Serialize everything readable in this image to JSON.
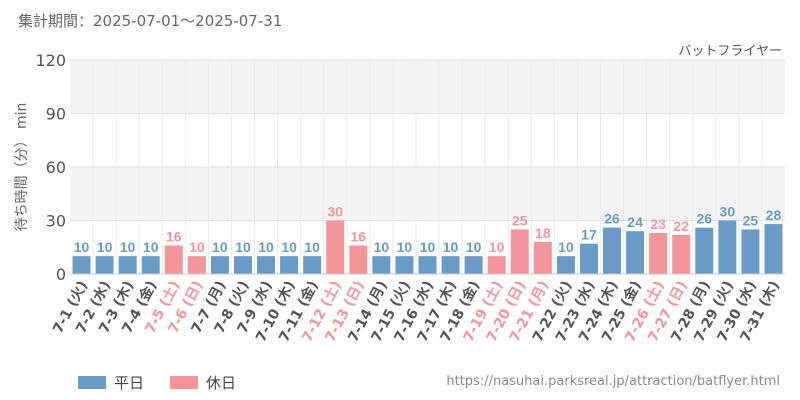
{
  "header": {
    "period": "集計期間：2025-07-01～2025-07-31",
    "attraction": "バットフライヤー"
  },
  "footer": {
    "source_url": "https://nasuhai.parksreal.jp/attraction/batflyer.html"
  },
  "colors": {
    "weekday": "#6a9bc6",
    "holiday": "#f4959a"
  },
  "chart_data": {
    "type": "bar",
    "ylabel": "待ち時間（分） min",
    "ylim": [
      0,
      120
    ],
    "yticks": [
      "0",
      "30",
      "60",
      "90",
      "120"
    ],
    "grid": true,
    "legend": [
      {
        "name": "平日",
        "kind": "weekday"
      },
      {
        "name": "休日",
        "kind": "holiday"
      }
    ],
    "categories": [
      "7-1 (火)",
      "7-2 (水)",
      "7-3 (木)",
      "7-4 (金)",
      "7-5 (土)",
      "7-6 (日)",
      "7-7 (月)",
      "7-8 (火)",
      "7-9 (水)",
      "7-10 (木)",
      "7-11 (金)",
      "7-12 (土)",
      "7-13 (日)",
      "7-14 (月)",
      "7-15 (火)",
      "7-16 (水)",
      "7-17 (木)",
      "7-18 (金)",
      "7-19 (土)",
      "7-20 (日)",
      "7-21 (月)",
      "7-22 (火)",
      "7-23 (水)",
      "7-24 (木)",
      "7-25 (金)",
      "7-26 (土)",
      "7-27 (日)",
      "7-28 (月)",
      "7-29 (火)",
      "7-30 (水)",
      "7-31 (木)"
    ],
    "values": [
      10,
      10,
      10,
      10,
      16,
      10,
      10,
      10,
      10,
      10,
      10,
      30,
      16,
      10,
      10,
      10,
      10,
      10,
      10,
      25,
      18,
      10,
      17,
      26,
      24,
      23,
      22,
      26,
      30,
      25,
      28
    ],
    "day_type": [
      "weekday",
      "weekday",
      "weekday",
      "weekday",
      "holiday",
      "holiday",
      "weekday",
      "weekday",
      "weekday",
      "weekday",
      "weekday",
      "holiday",
      "holiday",
      "weekday",
      "weekday",
      "weekday",
      "weekday",
      "weekday",
      "holiday",
      "holiday",
      "holiday",
      "weekday",
      "weekday",
      "weekday",
      "weekday",
      "holiday",
      "holiday",
      "weekday",
      "weekday",
      "weekday",
      "weekday"
    ]
  }
}
